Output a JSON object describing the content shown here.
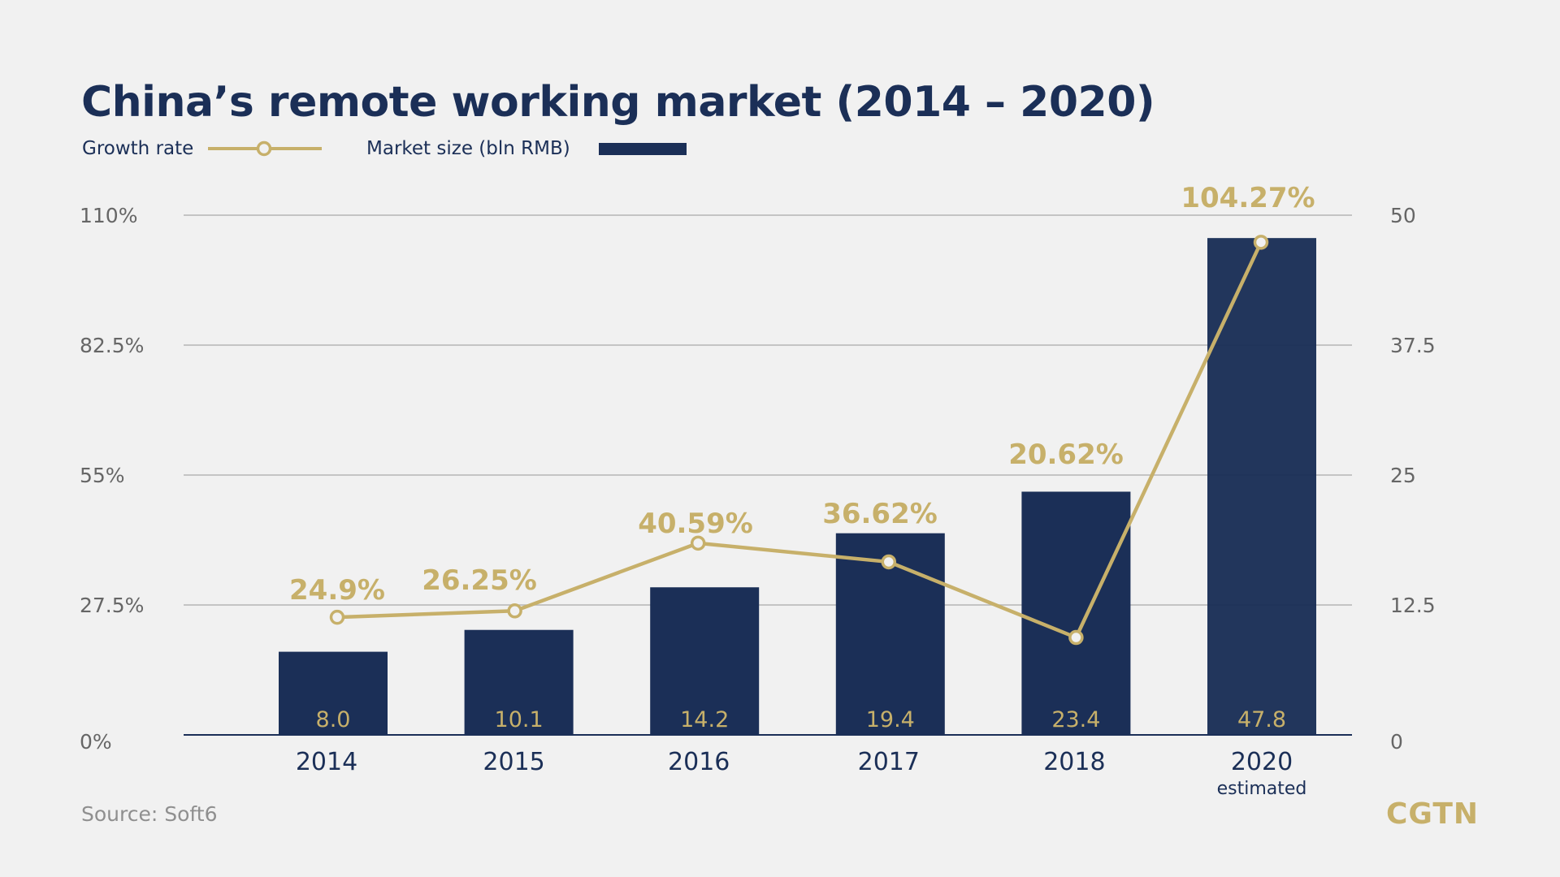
{
  "chart_data": {
    "type": "bar",
    "title": "China’s remote working market  (2014 – 2020)",
    "categories": [
      "2014",
      "2015",
      "2016",
      "2017",
      "2018",
      "2020"
    ],
    "category_notes": [
      "",
      "",
      "",
      "",
      "",
      "estimated"
    ],
    "series": [
      {
        "name": "Market size (bln RMB)",
        "type": "bar",
        "axis": "right",
        "values": [
          8.0,
          10.1,
          14.2,
          19.4,
          23.4,
          47.8
        ],
        "value_labels": [
          "8.0",
          "10.1",
          "14.2",
          "19.4",
          "23.4",
          "47.8"
        ],
        "color": "#1b2f57"
      },
      {
        "name": "Growth rate",
        "type": "line",
        "axis": "left",
        "values": [
          24.9,
          26.25,
          40.59,
          36.62,
          20.62,
          104.27
        ],
        "value_labels": [
          "24.9%",
          "26.25%",
          "40.59%",
          "36.62%",
          "20.62%",
          "104.27%"
        ],
        "color": "#c7b06a"
      }
    ],
    "y_left": {
      "ticks": [
        0,
        27.5,
        55,
        82.5,
        110
      ],
      "tick_labels": [
        "0%",
        "27.5%",
        "55%",
        "82.5%",
        "110%"
      ],
      "ylim": [
        0,
        110
      ]
    },
    "y_right": {
      "ticks": [
        0,
        12.5,
        25,
        37.5,
        50
      ],
      "tick_labels": [
        "0",
        "12.5",
        "25",
        "37.5",
        "50"
      ],
      "ylim": [
        0,
        50
      ]
    },
    "grid": true,
    "legend_placement": "top-left"
  },
  "source": "Source: Soft6",
  "logo": "CGTN",
  "colors": {
    "background": "#f1f1f1",
    "navy": "#1b2f57",
    "gold": "#c7b06a",
    "grid": "#b5b5b5",
    "axis_text": "#666666"
  }
}
